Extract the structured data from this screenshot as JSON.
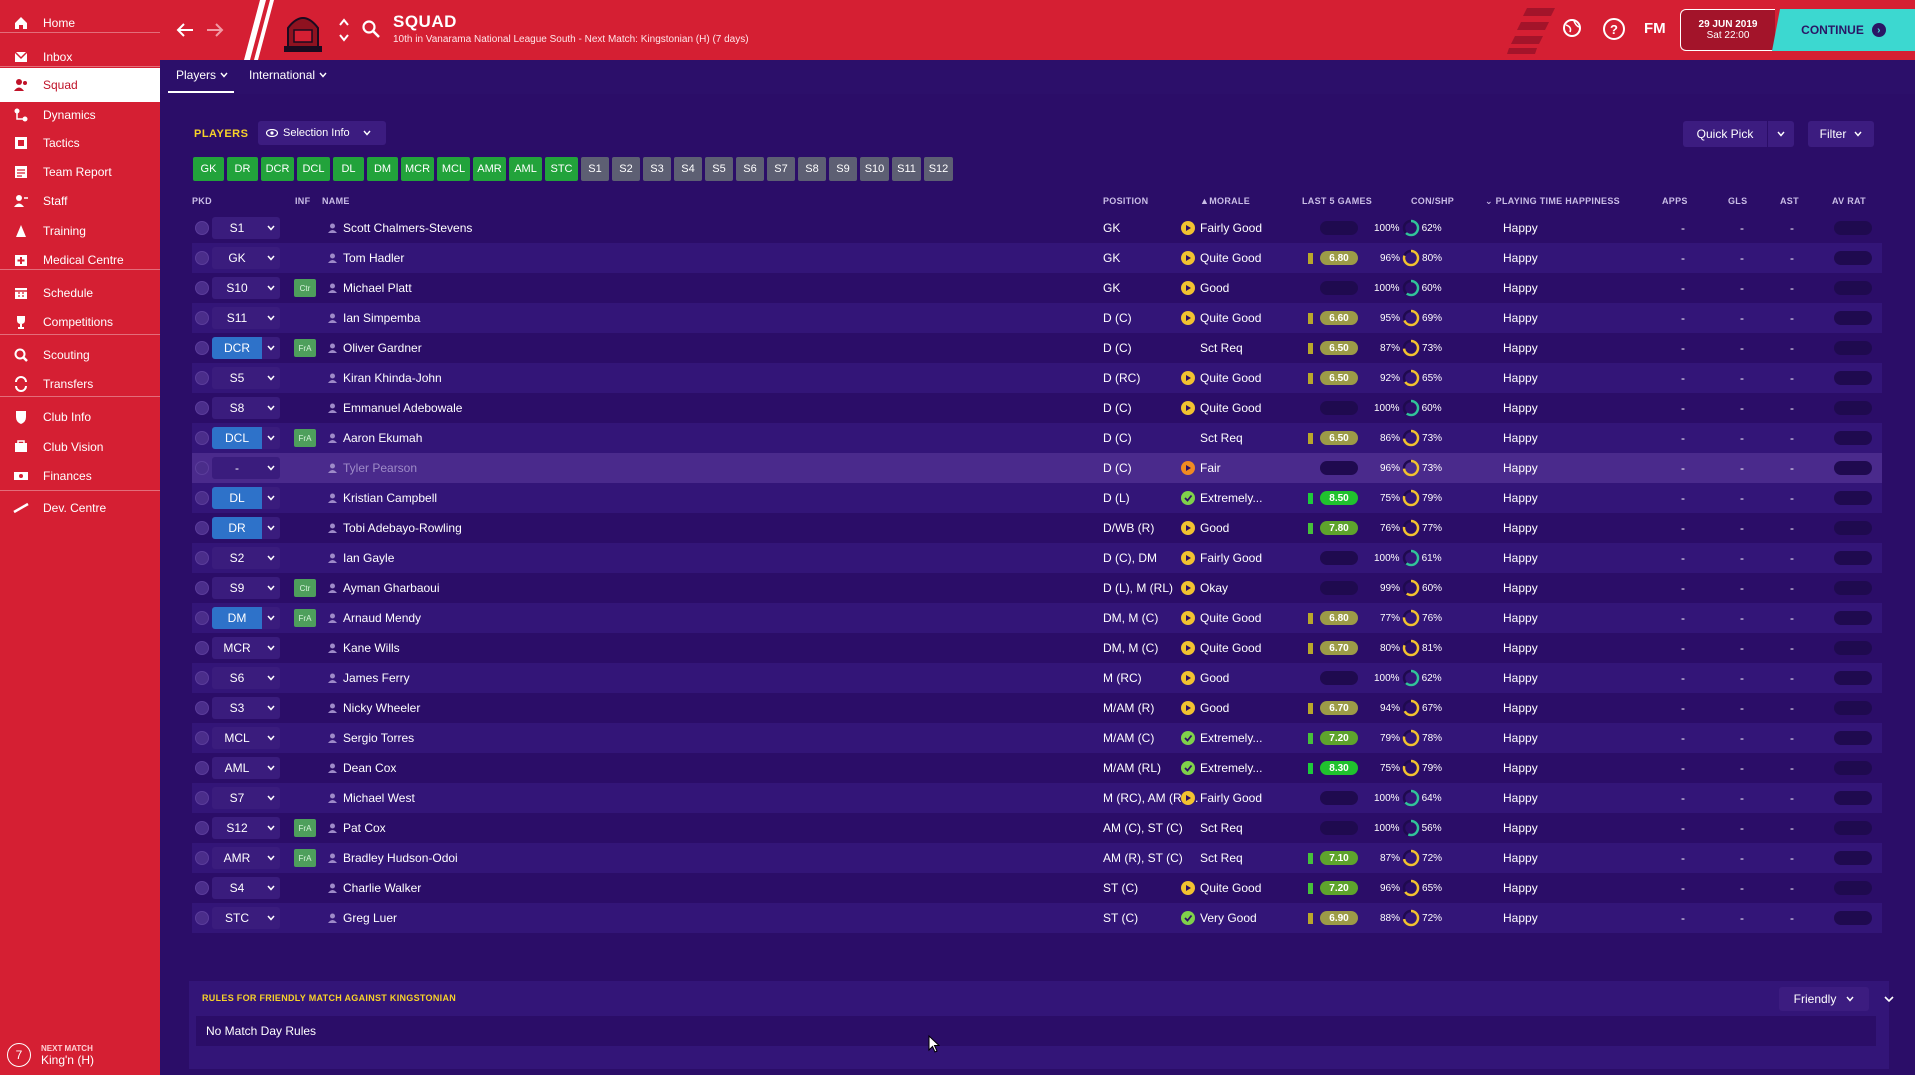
{
  "sidebar": {
    "items": [
      {
        "label": "Home",
        "icon": "home-icon"
      },
      {
        "label": "Inbox",
        "icon": "inbox-icon"
      },
      {
        "label": "Squad",
        "icon": "squad-icon",
        "active": true
      },
      {
        "label": "Dynamics",
        "icon": "dynamics-icon"
      },
      {
        "label": "Tactics",
        "icon": "tactics-icon"
      },
      {
        "label": "Team Report",
        "icon": "report-icon"
      },
      {
        "label": "Staff",
        "icon": "staff-icon"
      },
      {
        "label": "Training",
        "icon": "training-icon"
      },
      {
        "label": "Medical Centre",
        "icon": "medical-icon"
      },
      {
        "label": "Schedule",
        "icon": "calendar-icon"
      },
      {
        "label": "Competitions",
        "icon": "trophy-icon"
      },
      {
        "label": "Scouting",
        "icon": "scouting-icon"
      },
      {
        "label": "Transfers",
        "icon": "transfers-icon"
      },
      {
        "label": "Club Info",
        "icon": "shield-icon"
      },
      {
        "label": "Club Vision",
        "icon": "vision-icon"
      },
      {
        "label": "Finances",
        "icon": "finances-icon"
      },
      {
        "label": "Dev. Centre",
        "icon": "dev-centre-icon"
      }
    ],
    "next_match": {
      "label": "NEXT MATCH",
      "value": "King'n (H)",
      "icon_text": "7"
    }
  },
  "header": {
    "title": "SQUAD",
    "subtitle": "10th in Vanarama National League South - Next Match: Kingstonian (H) (7 days)",
    "fm_label": "FM",
    "date_line1": "29 JUN 2019",
    "date_line2": "Sat 22:00",
    "continue_label": "CONTINUE",
    "help_label": "?"
  },
  "subnav": {
    "tabs": [
      {
        "label": "Players",
        "active": true
      },
      {
        "label": "International",
        "active": false
      }
    ]
  },
  "panel": {
    "title": "PLAYERS",
    "selection_info": "Selection Info",
    "quick_pick": "Quick Pick",
    "filter": "Filter"
  },
  "positions": [
    {
      "label": "GK",
      "style": "green"
    },
    {
      "label": "DR",
      "style": "green"
    },
    {
      "label": "DCR",
      "style": "green"
    },
    {
      "label": "DCL",
      "style": "green"
    },
    {
      "label": "DL",
      "style": "green"
    },
    {
      "label": "DM",
      "style": "green"
    },
    {
      "label": "MCR",
      "style": "green"
    },
    {
      "label": "MCL",
      "style": "green"
    },
    {
      "label": "AMR",
      "style": "green"
    },
    {
      "label": "AML",
      "style": "green"
    },
    {
      "label": "STC",
      "style": "green"
    },
    {
      "label": "S1",
      "style": "grey"
    },
    {
      "label": "S2",
      "style": "grey"
    },
    {
      "label": "S3",
      "style": "grey"
    },
    {
      "label": "S4",
      "style": "grey"
    },
    {
      "label": "S5",
      "style": "grey"
    },
    {
      "label": "S6",
      "style": "grey"
    },
    {
      "label": "S7",
      "style": "grey"
    },
    {
      "label": "S8",
      "style": "grey"
    },
    {
      "label": "S9",
      "style": "grey"
    },
    {
      "label": "S10",
      "style": "grey"
    },
    {
      "label": "S11",
      "style": "grey"
    },
    {
      "label": "S12",
      "style": "grey"
    }
  ],
  "table": {
    "headers": {
      "pkd": "PKD",
      "inf": "INF",
      "name": "NAME",
      "position": "POSITION",
      "morale": "MORALE",
      "last5": "LAST 5 GAMES",
      "conshp": "CON/SHP",
      "pth": "PLAYING TIME HAPPINESS",
      "apps": "APPS",
      "gls": "GLS",
      "ast": "AST",
      "avrat": "AV RAT"
    },
    "rows": [
      {
        "pkd": "S1",
        "blue": false,
        "inf": "",
        "name": "Scott Chalmers-Stevens",
        "position": "GK",
        "morale": "Fairly Good",
        "morale_kind": "good",
        "last5": "",
        "l5_level": "",
        "con": "100%",
        "shp": "62%",
        "pth": "Happy",
        "apps": "-",
        "gls": "-",
        "ast": "-"
      },
      {
        "pkd": "GK",
        "blue": false,
        "inf": "",
        "name": "Tom Hadler",
        "position": "GK",
        "morale": "Quite Good",
        "morale_kind": "good",
        "last5": "6.80",
        "l5_level": "yellow",
        "con": "96%",
        "shp": "80%",
        "pth": "Happy",
        "apps": "-",
        "gls": "-",
        "ast": "-"
      },
      {
        "pkd": "S10",
        "blue": false,
        "inf": "Ctr",
        "name": "Michael Platt",
        "position": "GK",
        "morale": "Good",
        "morale_kind": "good",
        "last5": "",
        "l5_level": "",
        "con": "100%",
        "shp": "60%",
        "pth": "Happy",
        "apps": "-",
        "gls": "-",
        "ast": "-"
      },
      {
        "pkd": "S11",
        "blue": false,
        "inf": "",
        "name": "Ian Simpemba",
        "position": "D (C)",
        "morale": "Quite Good",
        "morale_kind": "good",
        "last5": "6.60",
        "l5_level": "yellow",
        "con": "95%",
        "shp": "69%",
        "pth": "Happy",
        "apps": "-",
        "gls": "-",
        "ast": "-"
      },
      {
        "pkd": "DCR",
        "blue": true,
        "inf": "FrA",
        "name": "Oliver Gardner",
        "position": "D (C)",
        "morale": "Sct Req",
        "morale_kind": "none",
        "last5": "6.50",
        "l5_level": "yellow",
        "con": "87%",
        "shp": "73%",
        "pth": "Happy",
        "apps": "-",
        "gls": "-",
        "ast": "-"
      },
      {
        "pkd": "S5",
        "blue": false,
        "inf": "",
        "name": "Kiran Khinda-John",
        "position": "D (RC)",
        "morale": "Quite Good",
        "morale_kind": "good",
        "last5": "6.50",
        "l5_level": "yellow",
        "con": "92%",
        "shp": "65%",
        "pth": "Happy",
        "apps": "-",
        "gls": "-",
        "ast": "-"
      },
      {
        "pkd": "S8",
        "blue": false,
        "inf": "",
        "name": "Emmanuel Adebowale",
        "position": "D (C)",
        "morale": "Quite Good",
        "morale_kind": "good",
        "last5": "",
        "l5_level": "",
        "con": "100%",
        "shp": "60%",
        "pth": "Happy",
        "apps": "-",
        "gls": "-",
        "ast": "-"
      },
      {
        "pkd": "DCL",
        "blue": true,
        "inf": "FrA",
        "name": "Aaron Ekumah",
        "position": "D (C)",
        "morale": "Sct Req",
        "morale_kind": "none",
        "last5": "6.50",
        "l5_level": "yellow",
        "con": "86%",
        "shp": "73%",
        "pth": "Happy",
        "apps": "-",
        "gls": "-",
        "ast": "-"
      },
      {
        "pkd": "-",
        "blue": false,
        "sel": true,
        "inf": "",
        "name": "Tyler Pearson",
        "position": "D (C)",
        "morale": "Fair",
        "morale_kind": "fair",
        "last5": "",
        "l5_level": "",
        "con": "96%",
        "shp": "73%",
        "pth": "Happy",
        "apps": "-",
        "gls": "-",
        "ast": "-"
      },
      {
        "pkd": "DL",
        "blue": true,
        "inf": "",
        "name": "Kristian Campbell",
        "position": "D (L)",
        "morale": "Extremely...",
        "morale_kind": "great",
        "last5": "8.50",
        "l5_level": "green",
        "con": "75%",
        "shp": "79%",
        "pth": "Happy",
        "apps": "-",
        "gls": "-",
        "ast": "-"
      },
      {
        "pkd": "DR",
        "blue": true,
        "inf": "",
        "name": "Tobi Adebayo-Rowling",
        "position": "D/WB (R)",
        "morale": "Good",
        "morale_kind": "good",
        "last5": "7.80",
        "l5_level": "lime",
        "con": "76%",
        "shp": "77%",
        "pth": "Happy",
        "apps": "-",
        "gls": "-",
        "ast": "-"
      },
      {
        "pkd": "S2",
        "blue": false,
        "inf": "",
        "name": "Ian Gayle",
        "position": "D (C), DM",
        "morale": "Fairly Good",
        "morale_kind": "good",
        "last5": "",
        "l5_level": "",
        "con": "100%",
        "shp": "61%",
        "pth": "Happy",
        "apps": "-",
        "gls": "-",
        "ast": "-"
      },
      {
        "pkd": "S9",
        "blue": false,
        "inf": "Ctr",
        "name": "Ayman Gharbaoui",
        "position": "D (L), M (RL)",
        "morale": "Okay",
        "morale_kind": "good",
        "last5": "",
        "l5_level": "",
        "con": "99%",
        "shp": "60%",
        "pth": "Happy",
        "apps": "-",
        "gls": "-",
        "ast": "-"
      },
      {
        "pkd": "DM",
        "blue": true,
        "inf": "FrA",
        "name": "Arnaud Mendy",
        "position": "DM, M (C)",
        "morale": "Quite Good",
        "morale_kind": "good",
        "last5": "6.80",
        "l5_level": "yellow",
        "con": "77%",
        "shp": "76%",
        "pth": "Happy",
        "apps": "-",
        "gls": "-",
        "ast": "-"
      },
      {
        "pkd": "MCR",
        "blue": false,
        "inf": "",
        "name": "Kane Wills",
        "position": "DM, M (C)",
        "morale": "Quite Good",
        "morale_kind": "good",
        "last5": "6.70",
        "l5_level": "yellow",
        "con": "80%",
        "shp": "81%",
        "pth": "Happy",
        "apps": "-",
        "gls": "-",
        "ast": "-"
      },
      {
        "pkd": "S6",
        "blue": false,
        "inf": "",
        "name": "James Ferry",
        "position": "M (RC)",
        "morale": "Good",
        "morale_kind": "good",
        "last5": "",
        "l5_level": "",
        "con": "100%",
        "shp": "62%",
        "pth": "Happy",
        "apps": "-",
        "gls": "-",
        "ast": "-"
      },
      {
        "pkd": "S3",
        "blue": false,
        "inf": "",
        "name": "Nicky Wheeler",
        "position": "M/AM (R)",
        "morale": "Good",
        "morale_kind": "good",
        "last5": "6.70",
        "l5_level": "yellow",
        "con": "94%",
        "shp": "67%",
        "pth": "Happy",
        "apps": "-",
        "gls": "-",
        "ast": "-"
      },
      {
        "pkd": "MCL",
        "blue": false,
        "inf": "",
        "name": "Sergio Torres",
        "position": "M/AM (C)",
        "morale": "Extremely...",
        "morale_kind": "great",
        "last5": "7.20",
        "l5_level": "lime",
        "con": "79%",
        "shp": "78%",
        "pth": "Happy",
        "apps": "-",
        "gls": "-",
        "ast": "-"
      },
      {
        "pkd": "AML",
        "blue": false,
        "inf": "",
        "name": "Dean Cox",
        "position": "M/AM (RL)",
        "morale": "Extremely...",
        "morale_kind": "great",
        "last5": "8.30",
        "l5_level": "green",
        "con": "75%",
        "shp": "79%",
        "pth": "Happy",
        "apps": "-",
        "gls": "-",
        "ast": "-"
      },
      {
        "pkd": "S7",
        "blue": false,
        "inf": "",
        "name": "Michael West",
        "position": "M (RC), AM (RL...",
        "morale": "Fairly Good",
        "morale_kind": "good",
        "last5": "",
        "l5_level": "",
        "con": "100%",
        "shp": "64%",
        "pth": "Happy",
        "apps": "-",
        "gls": "-",
        "ast": "-"
      },
      {
        "pkd": "S12",
        "blue": false,
        "inf": "FrA",
        "name": "Pat Cox",
        "position": "AM (C), ST (C)",
        "morale": "Sct Req",
        "morale_kind": "none",
        "last5": "",
        "l5_level": "",
        "con": "100%",
        "shp": "56%",
        "pth": "Happy",
        "apps": "-",
        "gls": "-",
        "ast": "-"
      },
      {
        "pkd": "AMR",
        "blue": false,
        "inf": "FrA",
        "name": "Bradley Hudson-Odoi",
        "position": "AM (R), ST (C)",
        "morale": "Sct Req",
        "morale_kind": "none",
        "last5": "7.10",
        "l5_level": "lime",
        "con": "87%",
        "shp": "72%",
        "pth": "Happy",
        "apps": "-",
        "gls": "-",
        "ast": "-"
      },
      {
        "pkd": "S4",
        "blue": false,
        "inf": "",
        "name": "Charlie Walker",
        "position": "ST (C)",
        "morale": "Quite Good",
        "morale_kind": "good",
        "last5": "7.20",
        "l5_level": "lime",
        "con": "96%",
        "shp": "65%",
        "pth": "Happy",
        "apps": "-",
        "gls": "-",
        "ast": "-"
      },
      {
        "pkd": "STC",
        "blue": false,
        "inf": "",
        "name": "Greg Luer",
        "position": "ST (C)",
        "morale": "Very Good",
        "morale_kind": "great",
        "last5": "6.90",
        "l5_level": "yellow",
        "con": "88%",
        "shp": "72%",
        "pth": "Happy",
        "apps": "-",
        "gls": "-",
        "ast": "-"
      }
    ]
  },
  "rules": {
    "title": "RULES FOR FRIENDLY MATCH AGAINST KINGSTONIAN",
    "selected": "Friendly",
    "body": "No Match Day Rules"
  },
  "colors": {
    "sidebar_red": "#d51f33",
    "background_purple": "#2c0f6a",
    "accent_yellow": "#f7d229",
    "continue_teal": "#3cd8d0",
    "position_green": "#22a33b",
    "pkd_blue": "#2e72c9"
  }
}
